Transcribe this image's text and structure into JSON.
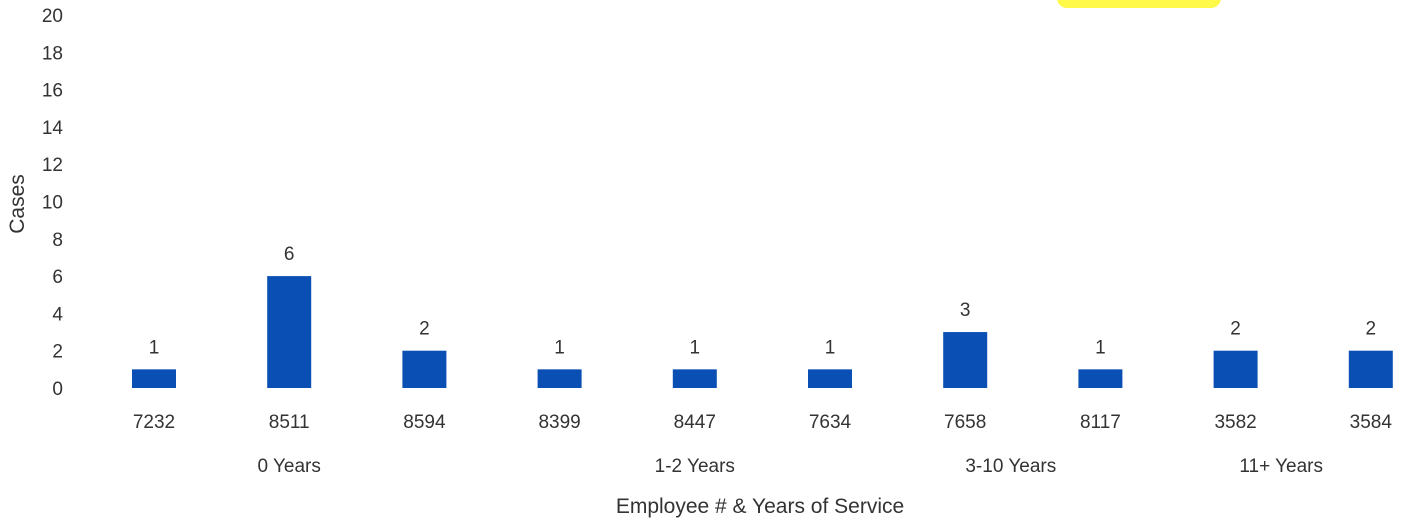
{
  "chart_data": {
    "type": "bar",
    "categories": [
      "7232",
      "8511",
      "8594",
      "8399",
      "8447",
      "7634",
      "7658",
      "8117",
      "3582",
      "3584"
    ],
    "values": [
      1,
      6,
      2,
      1,
      1,
      1,
      3,
      1,
      2,
      2
    ],
    "groups": [
      {
        "label": "0 Years",
        "categories": [
          "7232",
          "8511",
          "8594"
        ]
      },
      {
        "label": "1-2 Years",
        "categories": [
          "8399",
          "8447",
          "7634"
        ]
      },
      {
        "label": "3-10 Years",
        "categories": [
          "7658",
          "8117"
        ]
      },
      {
        "label": "11+ Years",
        "categories": [
          "3582",
          "3584"
        ]
      }
    ],
    "title": "",
    "xlabel": "Employee # & Years of Service",
    "ylabel": "Cases",
    "ylim": [
      0,
      20
    ],
    "yticks": [
      0,
      2,
      4,
      6,
      8,
      10,
      12,
      14,
      16,
      18,
      20
    ],
    "grid": false,
    "data_labels": true,
    "colors": {
      "bar": "#0a4fb4",
      "highlight": "#fff94a"
    }
  }
}
